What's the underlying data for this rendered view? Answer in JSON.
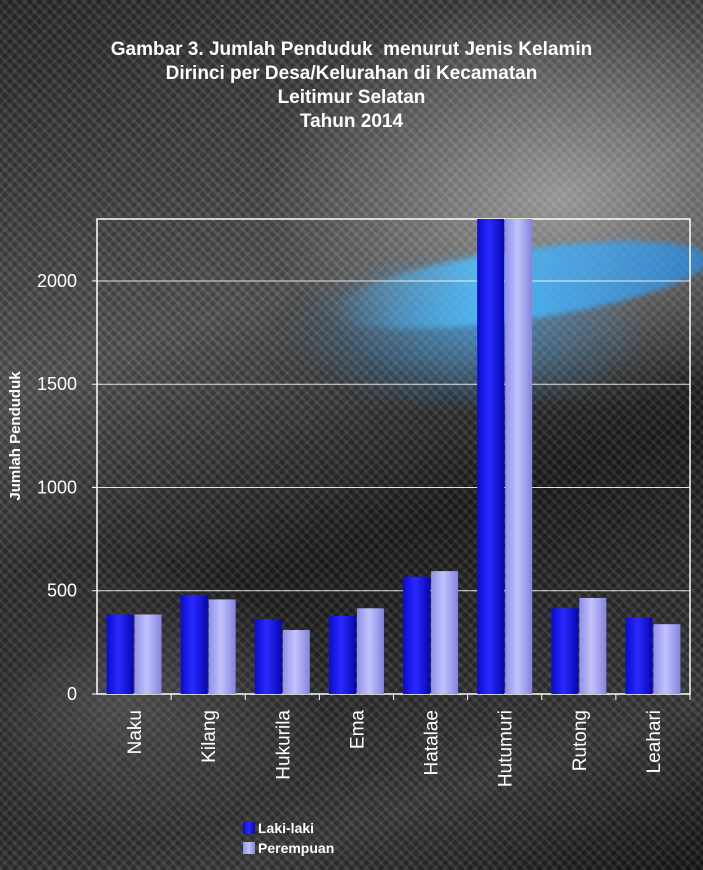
{
  "chart_data": {
    "type": "bar",
    "title_lines": [
      "Gambar 3. Jumlah Penduduk  menurut Jenis Kelamin",
      "Dirinci per Desa/Kelurahan di Kecamatan",
      "Leitimur Selatan",
      "Tahun 2014"
    ],
    "ylabel": "Jumlah Penduduk",
    "xlabel": "",
    "categories": [
      "Naku",
      "Kilang",
      "Hukurila",
      "Ema",
      "Hatalae",
      "Hutumuri",
      "Rutong",
      "Leahari"
    ],
    "series": [
      {
        "name": "Laki-laki",
        "color": "#1a1aff",
        "values": [
          385,
          480,
          362,
          378,
          568,
          2300,
          415,
          370
        ]
      },
      {
        "name": "Perempuan",
        "color": "#a7a7ff",
        "values": [
          385,
          458,
          310,
          415,
          595,
          2300,
          465,
          338
        ]
      }
    ],
    "yticks": [
      0,
      500,
      1000,
      1500,
      2000
    ],
    "ylim": [
      0,
      2300
    ],
    "grid": true,
    "legend_position": "bottom"
  }
}
